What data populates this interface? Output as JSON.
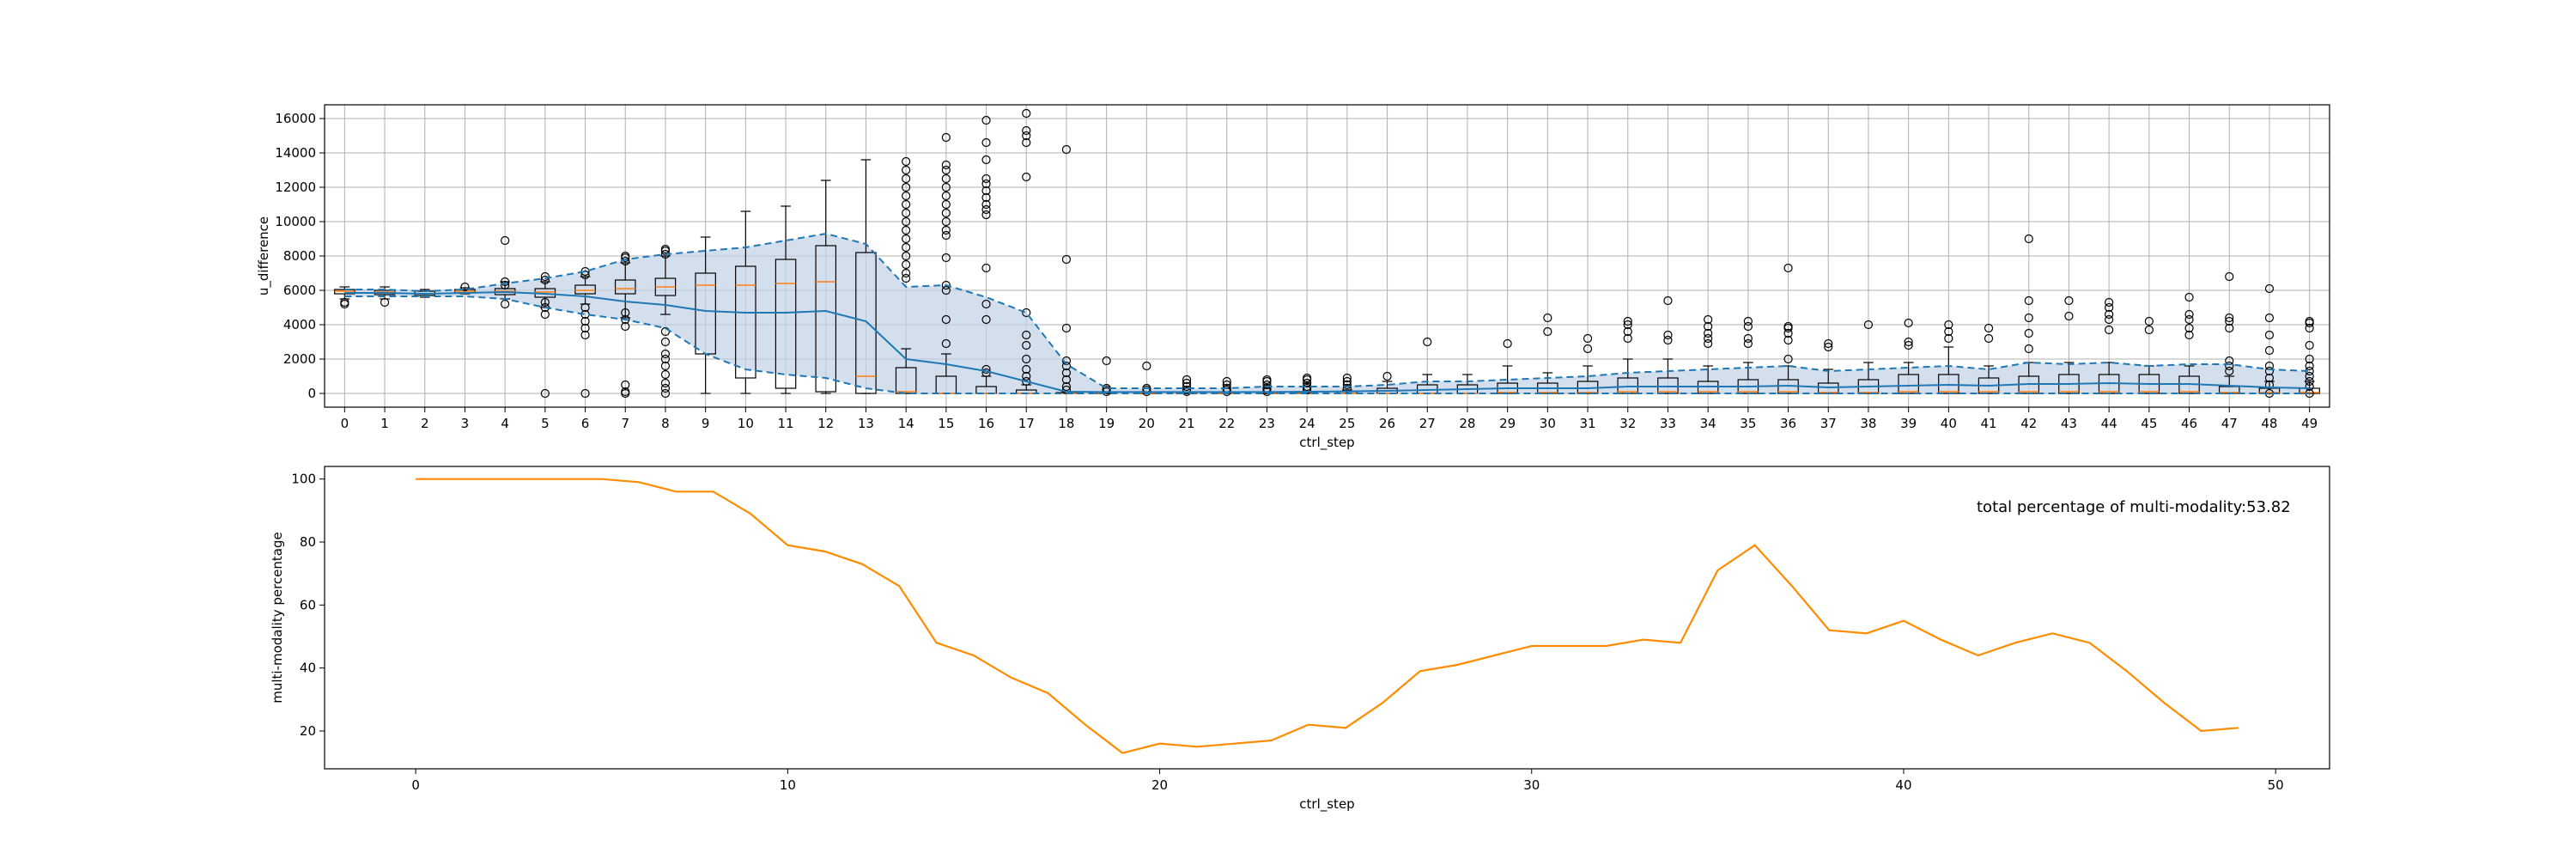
{
  "chart_data": [
    {
      "type": "box",
      "title": "",
      "xlabel": "ctrl_step",
      "ylabel": "u_difference",
      "ylim": [
        -800,
        16800
      ],
      "yticks": [
        0,
        2000,
        4000,
        6000,
        8000,
        10000,
        12000,
        14000,
        16000
      ],
      "grid": true,
      "categories": [
        0,
        1,
        2,
        3,
        4,
        5,
        6,
        7,
        8,
        9,
        10,
        11,
        12,
        13,
        14,
        15,
        16,
        17,
        18,
        19,
        20,
        21,
        22,
        23,
        24,
        25,
        26,
        27,
        28,
        29,
        30,
        31,
        32,
        33,
        34,
        35,
        36,
        37,
        38,
        39,
        40,
        41,
        42,
        43,
        44,
        45,
        46,
        47,
        48,
        49
      ],
      "boxes": [
        {
          "wlo": 5500,
          "q1": 5800,
          "med": 5950,
          "q3": 6050,
          "whi": 6200,
          "fliers": [
            5200,
            5300
          ]
        },
        {
          "wlo": 5500,
          "q1": 5750,
          "med": 5900,
          "q3": 6000,
          "whi": 6200,
          "fliers": [
            5300
          ]
        },
        {
          "wlo": 5600,
          "q1": 5700,
          "med": 5800,
          "q3": 5950,
          "whi": 6050,
          "fliers": []
        },
        {
          "wlo": 5800,
          "q1": 5850,
          "med": 5950,
          "q3": 6050,
          "whi": 6150,
          "fliers": [
            6200
          ]
        },
        {
          "wlo": 5500,
          "q1": 5750,
          "med": 5950,
          "q3": 6100,
          "whi": 6500,
          "fliers": [
            5200,
            6300,
            6500,
            8900
          ]
        },
        {
          "wlo": 5000,
          "q1": 5600,
          "med": 5900,
          "q3": 6100,
          "whi": 6500,
          "fliers": [
            4600,
            5000,
            5300,
            6600,
            6800,
            0
          ]
        },
        {
          "wlo": 5200,
          "q1": 5800,
          "med": 6000,
          "q3": 6300,
          "whi": 6800,
          "fliers": [
            3400,
            3800,
            4200,
            4600,
            5000,
            6900,
            7100,
            0
          ]
        },
        {
          "wlo": 4400,
          "q1": 5800,
          "med": 6100,
          "q3": 6600,
          "whi": 7600,
          "fliers": [
            0,
            100,
            500,
            3900,
            4300,
            4700,
            7700,
            7900,
            8000
          ]
        },
        {
          "wlo": 4600,
          "q1": 5700,
          "med": 6200,
          "q3": 6700,
          "whi": 8000,
          "fliers": [
            0,
            300,
            600,
            1100,
            1600,
            2000,
            2300,
            3000,
            3600,
            8100,
            8300,
            8400
          ]
        },
        {
          "wlo": 0,
          "q1": 2300,
          "med": 6300,
          "q3": 7000,
          "whi": 9100,
          "fliers": []
        },
        {
          "wlo": 0,
          "q1": 900,
          "med": 6300,
          "q3": 7400,
          "whi": 10600,
          "fliers": []
        },
        {
          "wlo": 0,
          "q1": 300,
          "med": 6400,
          "q3": 7800,
          "whi": 10900,
          "fliers": []
        },
        {
          "wlo": 0,
          "q1": 100,
          "med": 6500,
          "q3": 8600,
          "whi": 12400,
          "fliers": []
        },
        {
          "wlo": 0,
          "q1": 0,
          "med": 1000,
          "q3": 8200,
          "whi": 13600,
          "fliers": []
        },
        {
          "wlo": 0,
          "q1": 0,
          "med": 100,
          "q3": 1500,
          "whi": 2600,
          "fliers": [
            6700,
            7000,
            7500,
            8000,
            8500,
            9000,
            9500,
            10000,
            10500,
            11000,
            11500,
            12000,
            12500,
            13000,
            13500
          ]
        },
        {
          "wlo": 0,
          "q1": 0,
          "med": 0,
          "q3": 1000,
          "whi": 2300,
          "fliers": [
            2900,
            4300,
            6000,
            6300,
            7900,
            9200,
            9500,
            10000,
            10500,
            11000,
            11500,
            12000,
            12500,
            13000,
            13300,
            14900
          ]
        },
        {
          "wlo": 0,
          "q1": 0,
          "med": 0,
          "q3": 400,
          "whi": 1000,
          "fliers": [
            1200,
            1400,
            4300,
            5200,
            7300,
            10400,
            10700,
            11000,
            11400,
            11800,
            12200,
            12500,
            13600,
            14600,
            15900
          ]
        },
        {
          "wlo": 0,
          "q1": 0,
          "med": 0,
          "q3": 200,
          "whi": 500,
          "fliers": [
            700,
            1000,
            1400,
            2000,
            2800,
            3400,
            4700,
            12600,
            14600,
            15000,
            15300,
            16300
          ]
        },
        {
          "wlo": 0,
          "q1": 0,
          "med": 0,
          "q3": 50,
          "whi": 100,
          "fliers": [
            200,
            400,
            800,
            1200,
            1600,
            1900,
            3800,
            7800,
            14200
          ]
        },
        {
          "wlo": 0,
          "q1": 0,
          "med": 0,
          "q3": 30,
          "whi": 60,
          "fliers": [
            100,
            200,
            300,
            1900
          ]
        },
        {
          "wlo": 0,
          "q1": 0,
          "med": 0,
          "q3": 30,
          "whi": 60,
          "fliers": [
            100,
            200,
            300,
            1600
          ]
        },
        {
          "wlo": 0,
          "q1": 0,
          "med": 0,
          "q3": 30,
          "whi": 60,
          "fliers": [
            100,
            200,
            400,
            600,
            800
          ]
        },
        {
          "wlo": 0,
          "q1": 0,
          "med": 0,
          "q3": 40,
          "whi": 80,
          "fliers": [
            100,
            200,
            300,
            500,
            700
          ]
        },
        {
          "wlo": 0,
          "q1": 0,
          "med": 0,
          "q3": 40,
          "whi": 80,
          "fliers": [
            100,
            200,
            300,
            500,
            700,
            800
          ]
        },
        {
          "wlo": 0,
          "q1": 0,
          "med": 0,
          "q3": 50,
          "whi": 100,
          "fliers": [
            200,
            300,
            400,
            600,
            800,
            900
          ]
        },
        {
          "wlo": 0,
          "q1": 0,
          "med": 0,
          "q3": 100,
          "whi": 200,
          "fliers": [
            300,
            500,
            700,
            900
          ]
        },
        {
          "wlo": 0,
          "q1": 0,
          "med": 0,
          "q3": 300,
          "whi": 700,
          "fliers": [
            1000
          ]
        },
        {
          "wlo": 0,
          "q1": 0,
          "med": 0,
          "q3": 500,
          "whi": 1100,
          "fliers": [
            3000
          ]
        },
        {
          "wlo": 0,
          "q1": 0,
          "med": 0,
          "q3": 500,
          "whi": 1100,
          "fliers": []
        },
        {
          "wlo": 0,
          "q1": 0,
          "med": 50,
          "q3": 600,
          "whi": 1600,
          "fliers": [
            2900
          ]
        },
        {
          "wlo": 0,
          "q1": 0,
          "med": 50,
          "q3": 600,
          "whi": 1200,
          "fliers": [
            3600,
            4400
          ]
        },
        {
          "wlo": 0,
          "q1": 0,
          "med": 50,
          "q3": 700,
          "whi": 1600,
          "fliers": [
            2600,
            3200
          ]
        },
        {
          "wlo": 0,
          "q1": 0,
          "med": 100,
          "q3": 900,
          "whi": 2000,
          "fliers": [
            3200,
            3600,
            4000,
            4200
          ]
        },
        {
          "wlo": 0,
          "q1": 0,
          "med": 100,
          "q3": 900,
          "whi": 2000,
          "fliers": [
            3100,
            3400,
            5400
          ]
        },
        {
          "wlo": 0,
          "q1": 0,
          "med": 100,
          "q3": 700,
          "whi": 1600,
          "fliers": [
            2900,
            3200,
            3500,
            3900,
            4300
          ]
        },
        {
          "wlo": 0,
          "q1": 0,
          "med": 100,
          "q3": 800,
          "whi": 1800,
          "fliers": [
            2900,
            3200,
            3900,
            4200
          ]
        },
        {
          "wlo": 0,
          "q1": 0,
          "med": 100,
          "q3": 800,
          "whi": 1600,
          "fliers": [
            2000,
            3100,
            3500,
            3800,
            3900,
            7300
          ]
        },
        {
          "wlo": 0,
          "q1": 0,
          "med": 50,
          "q3": 600,
          "whi": 1400,
          "fliers": [
            2700,
            2900
          ]
        },
        {
          "wlo": 0,
          "q1": 0,
          "med": 50,
          "q3": 800,
          "whi": 1800,
          "fliers": [
            4000
          ]
        },
        {
          "wlo": 0,
          "q1": 0,
          "med": 100,
          "q3": 1100,
          "whi": 1800,
          "fliers": [
            2800,
            3000,
            4100
          ]
        },
        {
          "wlo": 0,
          "q1": 0,
          "med": 100,
          "q3": 1100,
          "whi": 2700,
          "fliers": [
            3200,
            3600,
            4000
          ]
        },
        {
          "wlo": 0,
          "q1": 0,
          "med": 100,
          "q3": 900,
          "whi": 1600,
          "fliers": [
            3200,
            3800
          ]
        },
        {
          "wlo": 0,
          "q1": 0,
          "med": 100,
          "q3": 1000,
          "whi": 1800,
          "fliers": [
            2600,
            3500,
            4400,
            5400,
            9000
          ]
        },
        {
          "wlo": 0,
          "q1": 0,
          "med": 100,
          "q3": 1100,
          "whi": 1800,
          "fliers": [
            4500,
            5400
          ]
        },
        {
          "wlo": 0,
          "q1": 0,
          "med": 100,
          "q3": 1100,
          "whi": 1800,
          "fliers": [
            3700,
            4300,
            4600,
            5000,
            5300
          ]
        },
        {
          "wlo": 0,
          "q1": 0,
          "med": 100,
          "q3": 1100,
          "whi": 1600,
          "fliers": [
            3700,
            4200
          ]
        },
        {
          "wlo": 0,
          "q1": 0,
          "med": 100,
          "q3": 1000,
          "whi": 1600,
          "fliers": [
            3400,
            3800,
            4300,
            4600,
            5600
          ]
        },
        {
          "wlo": 0,
          "q1": 0,
          "med": 50,
          "q3": 400,
          "whi": 1000,
          "fliers": [
            1300,
            1600,
            1900,
            3800,
            4200,
            4400,
            6800
          ]
        },
        {
          "wlo": 0,
          "q1": 0,
          "med": 50,
          "q3": 300,
          "whi": 700,
          "fliers": [
            0,
            500,
            900,
            1300,
            1600,
            2500,
            3400,
            4400,
            6100
          ]
        },
        {
          "wlo": 0,
          "q1": 0,
          "med": 50,
          "q3": 300,
          "whi": 700,
          "fliers": [
            0,
            400,
            700,
            1000,
            1300,
            1600,
            2000,
            2800,
            3800,
            4100,
            4200
          ]
        }
      ],
      "mean": [
        5850,
        5850,
        5800,
        5850,
        5900,
        5800,
        5650,
        5350,
        5150,
        4800,
        4700,
        4700,
        4800,
        4200,
        2000,
        1700,
        1300,
        700,
        100,
        80,
        80,
        80,
        80,
        80,
        100,
        120,
        150,
        200,
        250,
        300,
        300,
        300,
        400,
        400,
        400,
        400,
        450,
        350,
        400,
        450,
        500,
        450,
        550,
        550,
        600,
        550,
        550,
        450,
        350,
        300
      ],
      "upper": [
        6050,
        6050,
        5950,
        6050,
        6400,
        6700,
        7100,
        7800,
        8100,
        8300,
        8500,
        8900,
        9300,
        8700,
        6200,
        6300,
        5600,
        4700,
        1700,
        300,
        300,
        300,
        300,
        400,
        400,
        400,
        500,
        700,
        700,
        800,
        900,
        1000,
        1200,
        1300,
        1400,
        1500,
        1600,
        1300,
        1400,
        1500,
        1600,
        1400,
        1800,
        1700,
        1800,
        1600,
        1700,
        1700,
        1400,
        1300
      ],
      "lower": [
        5650,
        5650,
        5650,
        5650,
        5500,
        5000,
        4600,
        4300,
        3800,
        2300,
        1400,
        1100,
        900,
        300,
        0,
        0,
        0,
        0,
        0,
        0,
        0,
        0,
        0,
        0,
        0,
        0,
        0,
        0,
        0,
        0,
        0,
        0,
        0,
        0,
        0,
        0,
        0,
        0,
        0,
        0,
        0,
        0,
        0,
        0,
        0,
        0,
        0,
        0,
        0,
        0
      ],
      "colors": {
        "box": "#000000",
        "median": "#ff7f0e",
        "mean_line": "#1f77b4",
        "band_fill": "#c2d2e6"
      }
    },
    {
      "type": "line",
      "title": "",
      "xlabel": "ctrl_step",
      "ylabel": "multi-modality percentage",
      "xlim": [
        -2.45,
        51.45
      ],
      "ylim": [
        8,
        104
      ],
      "xticks": [
        0,
        10,
        20,
        30,
        40,
        50
      ],
      "yticks": [
        20,
        40,
        60,
        80,
        100
      ],
      "grid": false,
      "x": [
        0,
        1,
        2,
        3,
        4,
        5,
        6,
        7,
        8,
        9,
        10,
        11,
        12,
        13,
        14,
        15,
        16,
        17,
        18,
        19,
        20,
        21,
        22,
        23,
        24,
        25,
        26,
        27,
        28,
        29,
        30,
        31,
        32,
        33,
        34,
        35,
        36,
        37,
        38,
        39,
        40,
        41,
        42,
        43,
        44,
        45,
        46,
        47,
        48,
        49
      ],
      "y": [
        100,
        100,
        100,
        100,
        100,
        100,
        99,
        96,
        96,
        89,
        79,
        77,
        73,
        66,
        48,
        44,
        37,
        32,
        22,
        13,
        16,
        15,
        16,
        17,
        22,
        21,
        29,
        39,
        41,
        44,
        47,
        47,
        47,
        49,
        48,
        71,
        79,
        66,
        52,
        51,
        55,
        49,
        44,
        48,
        51,
        48,
        39,
        29,
        20,
        21
      ],
      "color": "#ff8c00",
      "annotation": "total percentage of multi-modality:53.82"
    }
  ]
}
